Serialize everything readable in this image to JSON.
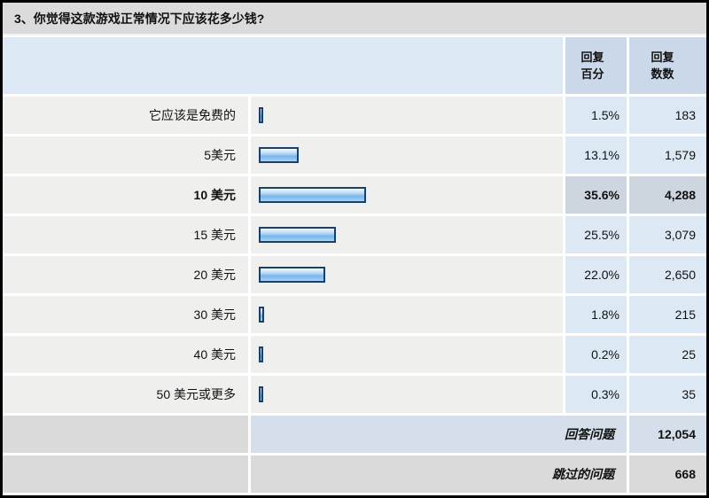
{
  "title": "3、你觉得这款游戏正常情况下应该花多少钱?",
  "table": {
    "headers": {
      "percent_line1": "回复",
      "percent_line2": "百分",
      "count_line1": "回复",
      "count_line2": "数数"
    },
    "rows": [
      {
        "label": "它应该是免费的",
        "percent": "1.5%",
        "percent_value": 1.5,
        "count": "183",
        "highlight": false
      },
      {
        "label": "5美元",
        "percent": "13.1%",
        "percent_value": 13.1,
        "count": "1,579",
        "highlight": false
      },
      {
        "label": "10 美元",
        "percent": "35.6%",
        "percent_value": 35.6,
        "count": "4,288",
        "highlight": true
      },
      {
        "label": "15 美元",
        "percent": "25.5%",
        "percent_value": 25.5,
        "count": "3,079",
        "highlight": false
      },
      {
        "label": "20 美元",
        "percent": "22.0%",
        "percent_value": 22.0,
        "count": "2,650",
        "highlight": false
      },
      {
        "label": "30 美元",
        "percent": "1.8%",
        "percent_value": 1.8,
        "count": "215",
        "highlight": false
      },
      {
        "label": "40 美元",
        "percent": "0.2%",
        "percent_value": 0.2,
        "count": "25",
        "highlight": false
      },
      {
        "label": "50 美元或更多",
        "percent": "0.3%",
        "percent_value": 0.3,
        "count": "35",
        "highlight": false
      }
    ],
    "footer": {
      "answered_label": "回答问题",
      "answered_count": "12,054",
      "skipped_label": "跳过的问题",
      "skipped_count": "668"
    }
  },
  "colors": {
    "bar_border": "#1d3e66",
    "bar_fill_main": "#7ab7ee",
    "row_label_bg": "#efefee",
    "row_value_bg": "#dce8f4",
    "highlight_bg": "#cdd5de",
    "title_bg": "#dbdbdb"
  },
  "chart_data": {
    "type": "bar",
    "title": "3、你觉得这款游戏正常情况下应该花多少钱?",
    "categories": [
      "它应该是免费的",
      "5美元",
      "10 美元",
      "15 美元",
      "20 美元",
      "30 美元",
      "40 美元",
      "50 美元或更多"
    ],
    "series": [
      {
        "name": "回复百分",
        "values": [
          1.5,
          13.1,
          35.6,
          25.5,
          22.0,
          1.8,
          0.2,
          0.3
        ]
      },
      {
        "name": "回复数数",
        "values": [
          183,
          1579,
          4288,
          3079,
          2650,
          215,
          25,
          35
        ]
      }
    ],
    "answered_total": 12054,
    "skipped_total": 668,
    "orientation": "horizontal",
    "xlim": [
      0,
      100
    ],
    "grid": false,
    "legend": false
  }
}
